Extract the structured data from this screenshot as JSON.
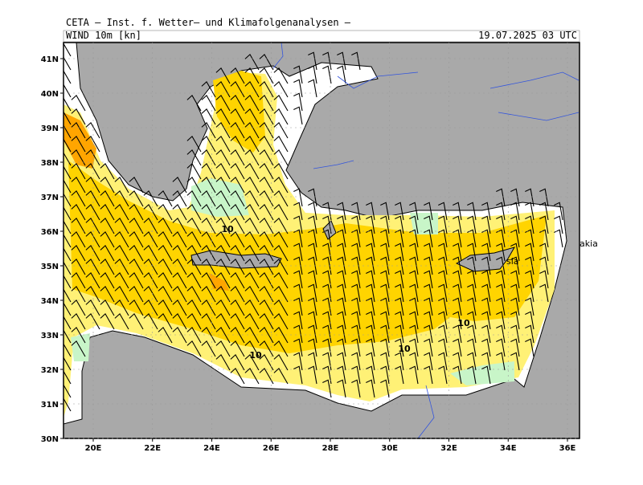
{
  "header": {
    "institute": "CETA – Inst. f. Wetter– und Klimafolgenanalysen –",
    "field": "WIND 10m [kn]",
    "valid_time": "19.07.2025 03 UTC"
  },
  "lat_ticks": [
    {
      "value": 30,
      "label": "30N"
    },
    {
      "value": 31,
      "label": "31N"
    },
    {
      "value": 32,
      "label": "32N"
    },
    {
      "value": 33,
      "label": "33N"
    },
    {
      "value": 34,
      "label": "34N"
    },
    {
      "value": 35,
      "label": "35N"
    },
    {
      "value": 36,
      "label": "36N"
    },
    {
      "value": 37,
      "label": "37N"
    },
    {
      "value": 38,
      "label": "38N"
    },
    {
      "value": 39,
      "label": "39N"
    },
    {
      "value": 40,
      "label": "40N"
    },
    {
      "value": 41,
      "label": "41N"
    }
  ],
  "lon_ticks": [
    {
      "value": 20,
      "label": "20E"
    },
    {
      "value": 22,
      "label": "22E"
    },
    {
      "value": 24,
      "label": "24E"
    },
    {
      "value": 26,
      "label": "26E"
    },
    {
      "value": 28,
      "label": "28E"
    },
    {
      "value": 30,
      "label": "30E"
    },
    {
      "value": 32,
      "label": "32E"
    },
    {
      "value": 34,
      "label": "34E"
    },
    {
      "value": 36,
      "label": "36E"
    }
  ],
  "contour_labels": [
    "10",
    "10",
    "10",
    "10"
  ],
  "place_labels": [
    "sia",
    "akia"
  ]
}
